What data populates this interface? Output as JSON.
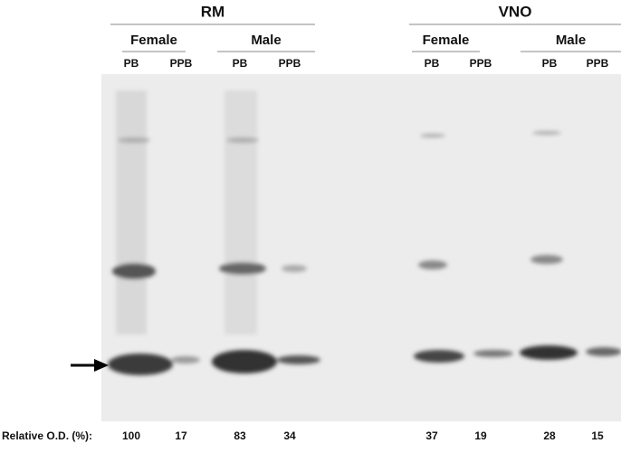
{
  "groups": [
    {
      "label": "RM",
      "subgroups": [
        {
          "label": "Female",
          "lanes": [
            "PB",
            "PPB"
          ]
        },
        {
          "label": "Male",
          "lanes": [
            "PB",
            "PPB"
          ]
        }
      ]
    },
    {
      "label": "VNO",
      "subgroups": [
        {
          "label": "Female",
          "lanes": [
            "PB",
            "PPB"
          ]
        },
        {
          "label": "Male",
          "lanes": [
            "PB",
            "PPB"
          ]
        }
      ]
    }
  ],
  "od_label": "Relative O.D. (%):",
  "od_values": [
    "100",
    "17",
    "83",
    "34",
    "37",
    "19",
    "28",
    "15"
  ]
}
